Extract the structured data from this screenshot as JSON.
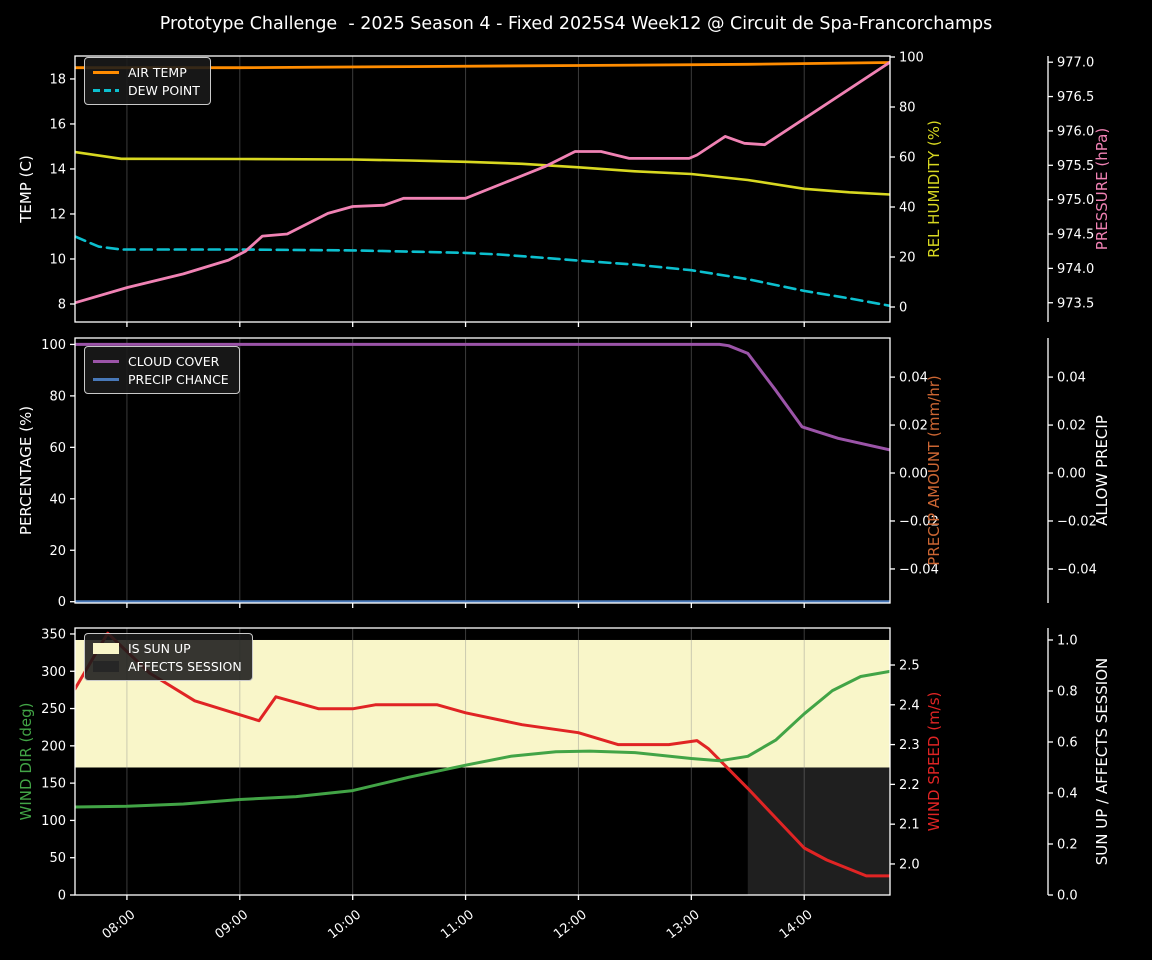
{
  "title": "Prototype Challenge  - 2025 Season 4 - Fixed 2025S4 Week12 @ Circuit de Spa-Francorchamps",
  "colors": {
    "background": "#000000",
    "foreground": "#ffffff",
    "grid": "#8c8c8c",
    "air_temp": "#ff8c00",
    "dew_point": "#0cc0cf",
    "rel_humidity": "#d8d821",
    "pressure": "#f082b4",
    "cloud_cover": "#9b54a8",
    "precip_chance": "#4878b8",
    "precip_amount_label": "#cc6633",
    "wind_dir": "#42a446",
    "wind_speed": "#e02424",
    "sun_up_band": "#f9f6c9",
    "affects_session_band": "#1f1f1f"
  },
  "x_axis": {
    "range": [
      7.54,
      14.76
    ],
    "ticks": [
      {
        "value": 8,
        "label": "08:00"
      },
      {
        "value": 9,
        "label": "09:00"
      },
      {
        "value": 10,
        "label": "10:00"
      },
      {
        "value": 11,
        "label": "11:00"
      },
      {
        "value": 12,
        "label": "12:00"
      },
      {
        "value": 13,
        "label": "13:00"
      },
      {
        "value": 14,
        "label": "14:00"
      }
    ]
  },
  "chart_data": [
    {
      "name": "temp-humidity-pressure-plot",
      "type": "line",
      "axes": {
        "left": {
          "label": "TEMP (C)",
          "label_color": "#ffffff",
          "range": [
            7.2,
            19.02
          ],
          "ticks": [
            8,
            10,
            12,
            14,
            16,
            18
          ],
          "decimals": 0
        },
        "right1": {
          "label": "REL HUMIDITY (%)",
          "label_color": "#d8d821",
          "range": [
            -6,
            100.4
          ],
          "ticks": [
            0,
            20,
            40,
            60,
            80,
            100
          ],
          "decimals": 0
        },
        "right2": {
          "label": "PRESSURE (hPa)",
          "label_color": "#f082b4",
          "range": [
            973.22,
            977.09
          ],
          "ticks": [
            973.5,
            974.0,
            974.5,
            975.0,
            975.5,
            976.0,
            976.5,
            977.0
          ],
          "decimals": 1
        }
      },
      "bands": [],
      "series": [
        {
          "name": "REL HUMIDITY",
          "axis": "right1",
          "color": "#d8d821",
          "dash": false,
          "width": 2.6,
          "points": [
            [
              7.54,
              62
            ],
            [
              7.95,
              59.3
            ],
            [
              9.0,
              59.2
            ],
            [
              10.0,
              59.0
            ],
            [
              10.5,
              58.6
            ],
            [
              11.0,
              58.1
            ],
            [
              11.5,
              57.3
            ],
            [
              12.0,
              55.9
            ],
            [
              12.5,
              54.3
            ],
            [
              13.0,
              53.2
            ],
            [
              13.5,
              50.8
            ],
            [
              14.0,
              47.3
            ],
            [
              14.4,
              45.9
            ],
            [
              14.76,
              45.0
            ]
          ]
        },
        {
          "name": "DEW POINT",
          "axis": "left",
          "color": "#0cc0cf",
          "dash": true,
          "width": 2.6,
          "points": [
            [
              7.54,
              11.0
            ],
            [
              7.75,
              10.55
            ],
            [
              7.95,
              10.42
            ],
            [
              9.0,
              10.42
            ],
            [
              10.0,
              10.38
            ],
            [
              10.6,
              10.32
            ],
            [
              11.0,
              10.27
            ],
            [
              11.3,
              10.2
            ],
            [
              11.7,
              10.05
            ],
            [
              12.0,
              9.93
            ],
            [
              12.5,
              9.75
            ],
            [
              13.0,
              9.5
            ],
            [
              13.5,
              9.1
            ],
            [
              14.0,
              8.58
            ],
            [
              14.4,
              8.25
            ],
            [
              14.76,
              7.92
            ]
          ]
        },
        {
          "name": "AIR TEMP",
          "axis": "left",
          "color": "#ff8c00",
          "dash": false,
          "width": 2.8,
          "points": [
            [
              7.54,
              18.5
            ],
            [
              9.0,
              18.5
            ],
            [
              10.5,
              18.55
            ],
            [
              12.0,
              18.6
            ],
            [
              13.5,
              18.65
            ],
            [
              14.76,
              18.73
            ]
          ]
        },
        {
          "name": "PRESSURE",
          "axis": "right2",
          "color": "#f082b4",
          "dash": false,
          "width": 2.8,
          "points": [
            [
              7.54,
              973.5
            ],
            [
              8.0,
              973.72
            ],
            [
              8.5,
              973.92
            ],
            [
              8.9,
              974.12
            ],
            [
              9.05,
              974.25
            ],
            [
              9.2,
              974.47
            ],
            [
              9.42,
              974.5
            ],
            [
              9.78,
              974.8
            ],
            [
              10.0,
              974.9
            ],
            [
              10.28,
              974.92
            ],
            [
              10.45,
              975.02
            ],
            [
              11.0,
              975.02
            ],
            [
              11.35,
              975.25
            ],
            [
              11.7,
              975.48
            ],
            [
              11.97,
              975.7
            ],
            [
              12.2,
              975.7
            ],
            [
              12.45,
              975.6
            ],
            [
              12.98,
              975.6
            ],
            [
              13.05,
              975.65
            ],
            [
              13.3,
              975.92
            ],
            [
              13.47,
              975.82
            ],
            [
              13.65,
              975.8
            ],
            [
              14.76,
              977.0
            ]
          ]
        }
      ],
      "legend": [
        {
          "label": "AIR TEMP",
          "color": "#ff8c00",
          "kind": "line"
        },
        {
          "label": "DEW POINT",
          "color": "#0cc0cf",
          "kind": "dashed"
        }
      ]
    },
    {
      "name": "cloud-precip-plot",
      "type": "line",
      "axes": {
        "left": {
          "label": "PERCENTAGE (%)",
          "label_color": "#ffffff",
          "range": [
            -0.5,
            102.5
          ],
          "ticks": [
            0,
            20,
            40,
            60,
            80,
            100
          ],
          "decimals": 0
        },
        "right1": {
          "label": "PRECIP AMOUNT (mm/hr)",
          "label_color": "#cc6633",
          "range": [
            -0.0542,
            0.0563
          ],
          "ticks": [
            -0.04,
            -0.02,
            0.0,
            0.02,
            0.04
          ],
          "decimals": 2
        },
        "right2": {
          "label": "ALLOW PRECIP",
          "label_color": "#ffffff",
          "range": [
            -0.0542,
            0.0563
          ],
          "ticks": [
            -0.04,
            -0.02,
            0.0,
            0.02,
            0.04
          ],
          "decimals": 2
        }
      },
      "bands": [],
      "series": [
        {
          "name": "PRECIP CHANCE",
          "axis": "left",
          "color": "#4878b8",
          "dash": false,
          "width": 3,
          "points": [
            [
              7.54,
              0
            ],
            [
              14.76,
              0
            ]
          ]
        },
        {
          "name": "CLOUD COVER",
          "axis": "left",
          "color": "#9b54a8",
          "dash": false,
          "width": 3,
          "points": [
            [
              7.54,
              100
            ],
            [
              13.25,
              100
            ],
            [
              13.33,
              99.5
            ],
            [
              13.5,
              96.5
            ],
            [
              13.75,
              82
            ],
            [
              13.98,
              68
            ],
            [
              14.3,
              63.5
            ],
            [
              14.76,
              59
            ]
          ]
        }
      ],
      "legend": [
        {
          "label": "CLOUD COVER",
          "color": "#9b54a8",
          "kind": "line"
        },
        {
          "label": "PRECIP CHANCE",
          "color": "#4878b8",
          "kind": "line"
        }
      ]
    },
    {
      "name": "wind-sun-plot",
      "type": "line",
      "axes": {
        "left": {
          "label": "WIND DIR (deg)",
          "label_color": "#42a446",
          "range": [
            0,
            358
          ],
          "ticks": [
            0,
            50,
            100,
            150,
            200,
            250,
            300,
            350
          ],
          "decimals": 0
        },
        "right1": {
          "label": "WIND SPEED (m/s)",
          "label_color": "#e02424",
          "range": [
            1.922,
            2.593
          ],
          "ticks": [
            2.0,
            2.1,
            2.2,
            2.3,
            2.4,
            2.5
          ],
          "decimals": 1
        },
        "right2": {
          "label": "SUN UP / AFFECTS SESSION",
          "label_color": "#ffffff",
          "range": [
            0,
            1.047
          ],
          "ticks": [
            0.0,
            0.2,
            0.4,
            0.6,
            0.8,
            1.0
          ],
          "decimals": 1
        }
      },
      "bands": [
        {
          "name": "is-sun-up-band",
          "axis": "right2",
          "x": [
            7.54,
            14.76
          ],
          "y": [
            0.5,
            1.0
          ],
          "color": "#f9f6c9"
        },
        {
          "name": "affects-session-band",
          "axis": "right2",
          "x": [
            13.5,
            14.76
          ],
          "y": [
            0.0,
            0.5
          ],
          "color": "#1f1f1f"
        }
      ],
      "series": [
        {
          "name": "WIND SPEED",
          "axis": "right1",
          "color": "#e02424",
          "dash": false,
          "width": 3,
          "points": [
            [
              7.54,
              2.44
            ],
            [
              7.83,
              2.58
            ],
            [
              8.2,
              2.48
            ],
            [
              8.6,
              2.41
            ],
            [
              9.17,
              2.36
            ],
            [
              9.32,
              2.42
            ],
            [
              9.7,
              2.39
            ],
            [
              10.0,
              2.39
            ],
            [
              10.2,
              2.4
            ],
            [
              10.75,
              2.4
            ],
            [
              11.0,
              2.38
            ],
            [
              11.5,
              2.35
            ],
            [
              12.0,
              2.33
            ],
            [
              12.35,
              2.3
            ],
            [
              12.8,
              2.3
            ],
            [
              13.05,
              2.31
            ],
            [
              13.15,
              2.29
            ],
            [
              13.5,
              2.19
            ],
            [
              14.0,
              2.04
            ],
            [
              14.2,
              2.01
            ],
            [
              14.55,
              1.97
            ],
            [
              14.76,
              1.97
            ]
          ]
        },
        {
          "name": "WIND DIR",
          "axis": "left",
          "color": "#42a446",
          "dash": false,
          "width": 3,
          "points": [
            [
              7.54,
              118
            ],
            [
              8.0,
              119
            ],
            [
              8.5,
              122
            ],
            [
              9.0,
              128
            ],
            [
              9.5,
              132
            ],
            [
              10.0,
              140
            ],
            [
              10.5,
              158
            ],
            [
              11.0,
              174
            ],
            [
              11.4,
              186
            ],
            [
              11.8,
              192
            ],
            [
              12.1,
              193
            ],
            [
              12.5,
              191
            ],
            [
              13.0,
              183
            ],
            [
              13.25,
              180
            ],
            [
              13.5,
              186
            ],
            [
              13.75,
              208
            ],
            [
              14.0,
              243
            ],
            [
              14.25,
              274
            ],
            [
              14.5,
              293
            ],
            [
              14.76,
              300
            ]
          ]
        }
      ],
      "legend": [
        {
          "label": "IS SUN UP",
          "color": "#f9f6c9",
          "kind": "patch"
        },
        {
          "label": "AFFECTS SESSION",
          "color": "#262626",
          "kind": "patch"
        }
      ]
    }
  ]
}
